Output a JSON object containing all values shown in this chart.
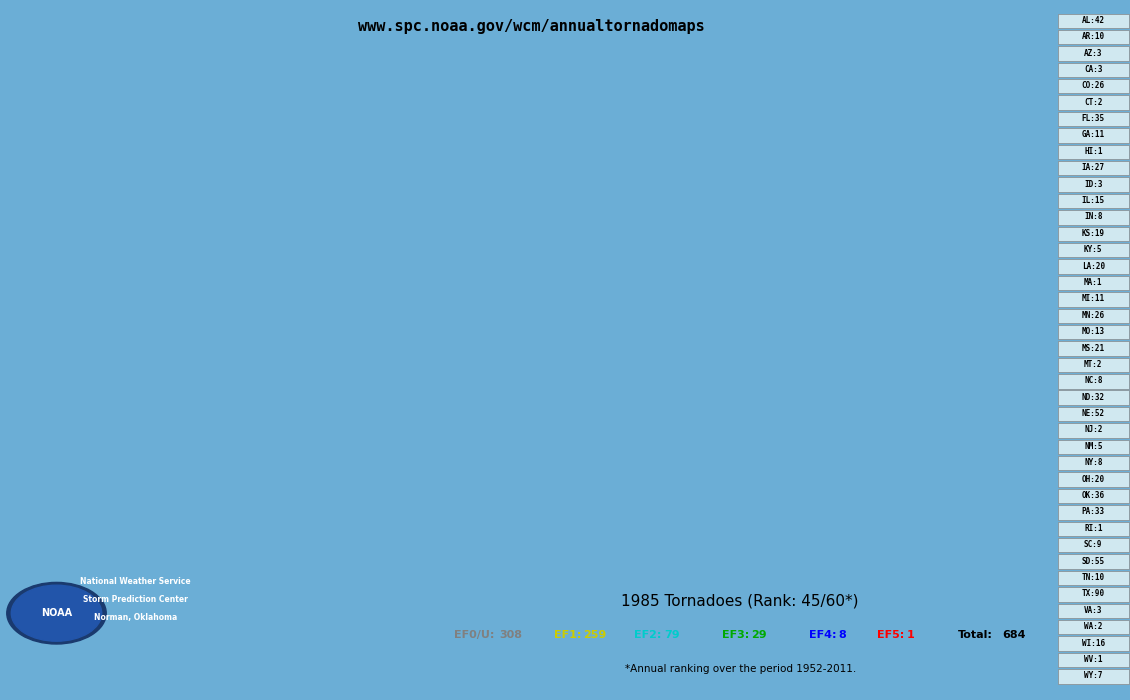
{
  "title_url": "www.spc.noaa.gov/wcm/annualtornadomaps",
  "map_title": "1985 Tornadoes (Rank: 45/60*)",
  "footnote": "*Annual ranking over the period 1952-2011.",
  "legend_items": [
    {
      "label": "EF0/U:",
      "count": "308",
      "color": "#808080"
    },
    {
      "label": "EF1:",
      "count": "259",
      "color": "#cccc00"
    },
    {
      "label": "EF2:",
      "count": "79",
      "color": "#00cccc"
    },
    {
      "label": "EF3:",
      "count": "29",
      "color": "#00aa00"
    },
    {
      "label": "EF4:",
      "count": "8",
      "color": "#0000ff"
    },
    {
      "label": "EF5:",
      "count": "1",
      "color": "#ff0000"
    },
    {
      "label": "Total:",
      "count": "684",
      "color": "#000000"
    }
  ],
  "state_counts": [
    {
      "state": "AL",
      "count": 42
    },
    {
      "state": "AR",
      "count": 10
    },
    {
      "state": "AZ",
      "count": 3
    },
    {
      "state": "CA",
      "count": 3
    },
    {
      "state": "CO",
      "count": 26
    },
    {
      "state": "CT",
      "count": 2
    },
    {
      "state": "FL",
      "count": 35
    },
    {
      "state": "GA",
      "count": 11
    },
    {
      "state": "HI",
      "count": 1
    },
    {
      "state": "IA",
      "count": 27
    },
    {
      "state": "ID",
      "count": 3
    },
    {
      "state": "IL",
      "count": 15
    },
    {
      "state": "IN",
      "count": 8
    },
    {
      "state": "KS",
      "count": 19
    },
    {
      "state": "KY",
      "count": 5
    },
    {
      "state": "LA",
      "count": 20
    },
    {
      "state": "MA",
      "count": 1
    },
    {
      "state": "MI",
      "count": 11
    },
    {
      "state": "MN",
      "count": 26
    },
    {
      "state": "MO",
      "count": 13
    },
    {
      "state": "MS",
      "count": 21
    },
    {
      "state": "MT",
      "count": 2
    },
    {
      "state": "NC",
      "count": 8
    },
    {
      "state": "ND",
      "count": 32
    },
    {
      "state": "NE",
      "count": 52
    },
    {
      "state": "NJ",
      "count": 2
    },
    {
      "state": "NM",
      "count": 5
    },
    {
      "state": "NY",
      "count": 8
    },
    {
      "state": "OH",
      "count": 20
    },
    {
      "state": "OK",
      "count": 36
    },
    {
      "state": "PA",
      "count": 33
    },
    {
      "state": "RI",
      "count": 1
    },
    {
      "state": "SC",
      "count": 9
    },
    {
      "state": "SD",
      "count": 55
    },
    {
      "state": "TN",
      "count": 10
    },
    {
      "state": "TX",
      "count": 90
    },
    {
      "state": "VA",
      "count": 3
    },
    {
      "state": "WA",
      "count": 2
    },
    {
      "state": "WI",
      "count": 16
    },
    {
      "state": "WV",
      "count": 1
    },
    {
      "state": "WY",
      "count": 7
    }
  ],
  "bg_ocean": "#6baed6",
  "bg_land_us": "#ffffff",
  "bg_land_canada": "#aaaaaa",
  "sidebar_bg": "#add8e6",
  "sidebar_text_bg": "#d0e8f0",
  "legend_box_bg": "#ffffff",
  "legend_box_border": "#aaaaaa"
}
